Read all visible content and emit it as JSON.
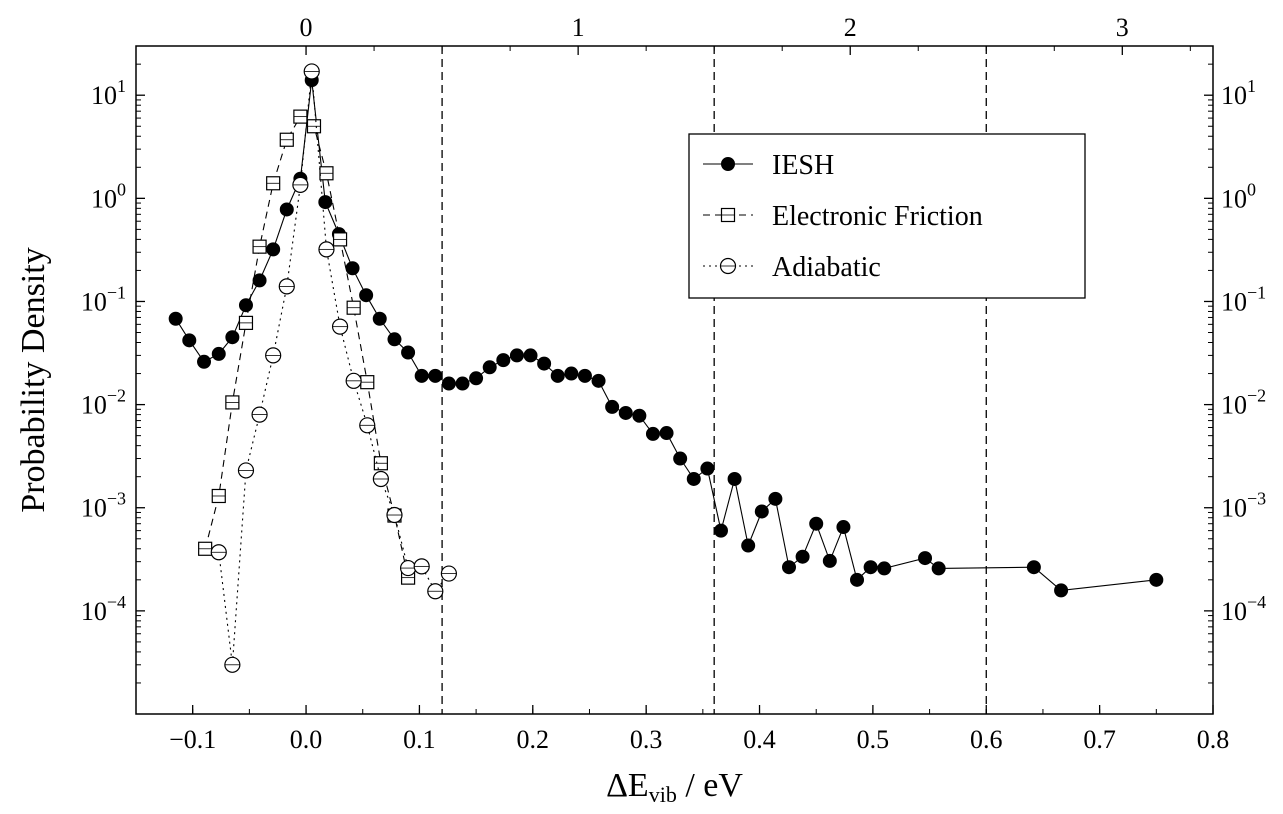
{
  "chart_data": {
    "type": "scatter",
    "title": "",
    "xlabel": "ΔE",
    "xlabel_subscript": "vib",
    "xlabel_unit": " / eV",
    "ylabel": "Probability Density",
    "xlim": [
      -0.15,
      0.8
    ],
    "ylim": [
      1e-05,
      30
    ],
    "yscale": "log",
    "x_ticks": [
      -0.1,
      0.0,
      0.1,
      0.2,
      0.3,
      0.4,
      0.5,
      0.6,
      0.7,
      0.8
    ],
    "x_tick_labels": [
      "−0.1",
      "0.0",
      "0.1",
      "0.2",
      "0.3",
      "0.4",
      "0.5",
      "0.6",
      "0.7",
      "0.8"
    ],
    "y_ticks": [
      0.0001,
      0.001,
      0.01,
      0.1,
      1,
      10
    ],
    "y_tick_base": "10",
    "y_tick_exponents": [
      "−4",
      "−3",
      "−2",
      "−1",
      "0",
      "1"
    ],
    "top_axis": {
      "ticks": [
        0.0,
        0.24,
        0.48,
        0.72
      ],
      "labels": [
        "0",
        "1",
        "2",
        "3"
      ]
    },
    "vlines": [
      0.12,
      0.36,
      0.6
    ],
    "legend_position": "upper-right",
    "series": [
      {
        "name": "IESH",
        "marker": "filled-circle",
        "line": "solid",
        "x": [
          -0.115,
          -0.103,
          -0.09,
          -0.077,
          -0.065,
          -0.053,
          -0.041,
          -0.029,
          -0.017,
          -0.005,
          0.005,
          0.017,
          0.029,
          0.041,
          0.053,
          0.065,
          0.078,
          0.09,
          0.102,
          0.114,
          0.126,
          0.138,
          0.15,
          0.162,
          0.174,
          0.186,
          0.198,
          0.21,
          0.222,
          0.234,
          0.246,
          0.258,
          0.27,
          0.282,
          0.294,
          0.306,
          0.318,
          0.33,
          0.342,
          0.354,
          0.366,
          0.378,
          0.39,
          0.402,
          0.414,
          0.426,
          0.438,
          0.45,
          0.462,
          0.474,
          0.486,
          0.498,
          0.51,
          0.546,
          0.558,
          0.642,
          0.666,
          0.75
        ],
        "y": [
          0.068,
          0.042,
          0.026,
          0.031,
          0.045,
          0.092,
          0.16,
          0.32,
          0.78,
          1.55,
          14.0,
          0.92,
          0.45,
          0.21,
          0.115,
          0.068,
          0.043,
          0.032,
          0.019,
          0.019,
          0.016,
          0.016,
          0.018,
          0.023,
          0.027,
          0.03,
          0.03,
          0.025,
          0.019,
          0.02,
          0.019,
          0.017,
          0.0095,
          0.0083,
          0.0078,
          0.0052,
          0.0053,
          0.003,
          0.0019,
          0.0024,
          0.0006,
          0.0019,
          0.00043,
          0.00092,
          0.00122,
          0.000265,
          0.000335,
          0.0007,
          0.000305,
          0.00065,
          0.0002,
          0.000265,
          0.000258,
          0.000325,
          0.000258,
          0.000265,
          0.000158,
          0.0002
        ]
      },
      {
        "name": "Electronic Friction",
        "marker": "open-square",
        "line": "dashed",
        "x": [
          -0.089,
          -0.077,
          -0.065,
          -0.053,
          -0.041,
          -0.029,
          -0.017,
          -0.005,
          0.007,
          0.018,
          0.03,
          0.042,
          0.054,
          0.066,
          0.078,
          0.09
        ],
        "y": [
          0.0004,
          0.0013,
          0.0105,
          0.062,
          0.34,
          1.4,
          3.7,
          6.2,
          5.0,
          1.75,
          0.4,
          0.087,
          0.0165,
          0.0027,
          0.00084,
          0.00021
        ]
      },
      {
        "name": "Adiabatic",
        "marker": "open-circle",
        "line": "dotted",
        "x": [
          -0.077,
          -0.065,
          -0.053,
          -0.041,
          -0.029,
          -0.017,
          -0.005,
          0.005,
          0.018,
          0.03,
          0.042,
          0.054,
          0.066,
          0.078,
          0.09,
          0.102,
          0.114,
          0.126
        ],
        "y": [
          0.00037,
          3e-05,
          0.0023,
          0.008,
          0.03,
          0.14,
          1.35,
          17.0,
          0.32,
          0.057,
          0.017,
          0.0063,
          0.0019,
          0.00085,
          0.00026,
          0.00027,
          0.000155,
          0.00023
        ]
      }
    ]
  }
}
